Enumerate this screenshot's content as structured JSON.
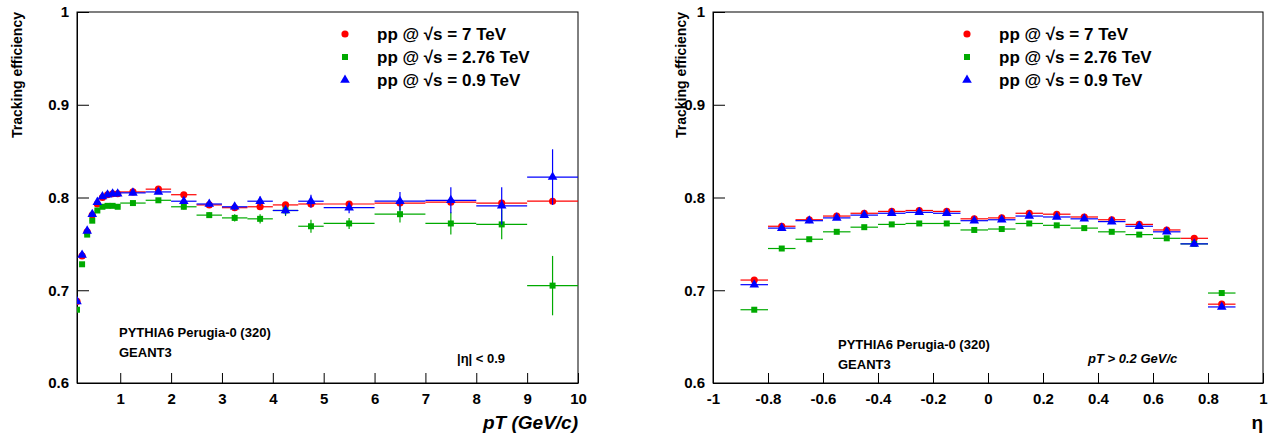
{
  "chart_data": [
    {
      "type": "scatter",
      "x_label": "pT (GeV/c)",
      "y_label": "Tracking efficiency",
      "xlim": [
        0.15,
        10
      ],
      "ylim": [
        0.6,
        1
      ],
      "xticks": [
        1,
        2,
        3,
        4,
        5,
        6,
        7,
        8,
        9,
        10
      ],
      "yticks": [
        0.6,
        0.7,
        0.8,
        0.9,
        1
      ],
      "legend": "upper right",
      "annotations": [
        "PYTHIA6 Perugia-0 (320)",
        "GEANT3",
        "|η| < 0.9"
      ],
      "series": [
        {
          "name": "pp @ √s = 7 TeV",
          "color": "#ff0000",
          "marker": "circle",
          "x": [
            0.15,
            0.25,
            0.35,
            0.45,
            0.55,
            0.65,
            0.75,
            0.85,
            0.95,
            1.25,
            1.75,
            2.25,
            2.75,
            3.25,
            3.75,
            4.25,
            4.75,
            5.5,
            6.5,
            7.5,
            8.5,
            9.5
          ],
          "values": [
            0.688,
            0.737,
            0.763,
            0.781,
            0.793,
            0.8,
            0.803,
            0.804,
            0.804,
            0.806,
            0.809,
            0.803,
            0.792,
            0.789,
            0.79,
            0.792,
            0.793,
            0.793,
            0.794,
            0.795,
            0.794,
            0.796
          ],
          "xerr": [
            0.05,
            0.05,
            0.05,
            0.05,
            0.05,
            0.05,
            0.05,
            0.05,
            0.05,
            0.25,
            0.25,
            0.25,
            0.25,
            0.25,
            0.25,
            0.25,
            0.25,
            0.5,
            0.5,
            0.5,
            0.5,
            0.5
          ],
          "yerr": [
            0.001,
            0.001,
            0.001,
            0.001,
            0.001,
            0.001,
            0.001,
            0.001,
            0.001,
            0.001,
            0.002,
            0.002,
            0.002,
            0.002,
            0.002,
            0.002,
            0.002,
            0.002,
            0.003,
            0.003,
            0.003,
            0.003
          ]
        },
        {
          "name": "pp @ √s = 2.76 TeV",
          "color": "#00aa00",
          "marker": "square",
          "x": [
            0.15,
            0.25,
            0.35,
            0.45,
            0.55,
            0.65,
            0.75,
            0.85,
            0.95,
            1.25,
            1.75,
            2.25,
            2.75,
            3.25,
            3.75,
            4.25,
            4.75,
            5.5,
            6.5,
            7.5,
            8.5,
            9.5
          ],
          "values": [
            0.679,
            0.728,
            0.76,
            0.775,
            0.786,
            0.79,
            0.791,
            0.791,
            0.79,
            0.794,
            0.797,
            0.79,
            0.781,
            0.778,
            0.777,
            0.786,
            0.769,
            0.772,
            0.782,
            0.772,
            0.771,
            0.705
          ],
          "xerr": [
            0.05,
            0.05,
            0.05,
            0.05,
            0.05,
            0.05,
            0.05,
            0.05,
            0.05,
            0.25,
            0.25,
            0.25,
            0.25,
            0.25,
            0.25,
            0.25,
            0.25,
            0.5,
            0.5,
            0.5,
            0.5,
            0.5
          ],
          "yerr": [
            0.001,
            0.001,
            0.001,
            0.001,
            0.001,
            0.001,
            0.001,
            0.001,
            0.001,
            0.002,
            0.002,
            0.003,
            0.003,
            0.004,
            0.005,
            0.006,
            0.007,
            0.006,
            0.009,
            0.012,
            0.016,
            0.032
          ]
        },
        {
          "name": "pp @ √s = 0.9 TeV",
          "color": "#0000ff",
          "marker": "triangle",
          "x": [
            0.15,
            0.25,
            0.35,
            0.45,
            0.55,
            0.65,
            0.75,
            0.85,
            0.95,
            1.25,
            1.75,
            2.25,
            2.75,
            3.25,
            3.75,
            4.25,
            4.75,
            5.5,
            6.5,
            7.5,
            8.5,
            9.5
          ],
          "values": [
            0.688,
            0.738,
            0.764,
            0.782,
            0.795,
            0.801,
            0.803,
            0.804,
            0.804,
            0.805,
            0.806,
            0.796,
            0.793,
            0.79,
            0.796,
            0.786,
            0.796,
            0.789,
            0.796,
            0.797,
            0.791,
            0.822
          ],
          "xerr": [
            0.05,
            0.05,
            0.05,
            0.05,
            0.05,
            0.05,
            0.05,
            0.05,
            0.05,
            0.25,
            0.25,
            0.25,
            0.25,
            0.25,
            0.25,
            0.25,
            0.25,
            0.5,
            0.5,
            0.5,
            0.5,
            0.5
          ],
          "yerr": [
            0.001,
            0.001,
            0.001,
            0.001,
            0.001,
            0.001,
            0.001,
            0.001,
            0.001,
            0.002,
            0.002,
            0.002,
            0.003,
            0.004,
            0.005,
            0.005,
            0.007,
            0.006,
            0.01,
            0.014,
            0.02,
            0.03
          ]
        }
      ]
    },
    {
      "type": "scatter",
      "x_label": "η",
      "y_label": "Tracking efficiency",
      "xlim": [
        -1,
        1
      ],
      "ylim": [
        0.6,
        1
      ],
      "xticks": [
        -1,
        -0.8,
        -0.6,
        -0.4,
        -0.2,
        0,
        0.2,
        0.4,
        0.6,
        0.8,
        1
      ],
      "yticks": [
        0.6,
        0.7,
        0.8,
        0.9,
        1
      ],
      "legend": "upper right",
      "annotations": [
        "PYTHIA6 Perugia-0 (320)",
        "GEANT3",
        "pT > 0.2 GeV/c"
      ],
      "series": [
        {
          "name": "pp @ √s = 7 TeV",
          "color": "#ff0000",
          "marker": "circle",
          "x": [
            -0.85,
            -0.75,
            -0.65,
            -0.55,
            -0.45,
            -0.35,
            -0.25,
            -0.15,
            -0.05,
            0.05,
            0.15,
            0.25,
            0.35,
            0.45,
            0.55,
            0.65,
            0.75,
            0.85
          ],
          "values": [
            0.711,
            0.769,
            0.776,
            0.78,
            0.783,
            0.785,
            0.786,
            0.785,
            0.777,
            0.778,
            0.783,
            0.782,
            0.779,
            0.776,
            0.771,
            0.765,
            0.756,
            0.685
          ],
          "xerr": [
            0.05,
            0.05,
            0.05,
            0.05,
            0.05,
            0.05,
            0.05,
            0.05,
            0.05,
            0.05,
            0.05,
            0.05,
            0.05,
            0.05,
            0.05,
            0.05,
            0.05,
            0.05
          ]
        },
        {
          "name": "pp @ √s = 2.76 TeV",
          "color": "#00aa00",
          "marker": "square",
          "x": [
            -0.85,
            -0.75,
            -0.65,
            -0.55,
            -0.45,
            -0.35,
            -0.25,
            -0.15,
            -0.05,
            0.05,
            0.15,
            0.25,
            0.35,
            0.45,
            0.55,
            0.65,
            0.75,
            0.85
          ],
          "values": [
            0.679,
            0.745,
            0.755,
            0.763,
            0.768,
            0.771,
            0.772,
            0.772,
            0.765,
            0.766,
            0.772,
            0.77,
            0.767,
            0.763,
            0.76,
            0.756,
            0.75,
            0.697
          ],
          "xerr": [
            0.05,
            0.05,
            0.05,
            0.05,
            0.05,
            0.05,
            0.05,
            0.05,
            0.05,
            0.05,
            0.05,
            0.05,
            0.05,
            0.05,
            0.05,
            0.05,
            0.05,
            0.05
          ]
        },
        {
          "name": "pp @ √s = 0.9 TeV",
          "color": "#0000ff",
          "marker": "triangle",
          "x": [
            -0.85,
            -0.75,
            -0.65,
            -0.55,
            -0.45,
            -0.35,
            -0.25,
            -0.15,
            -0.05,
            0.05,
            0.15,
            0.25,
            0.35,
            0.45,
            0.55,
            0.65,
            0.75,
            0.85
          ],
          "values": [
            0.706,
            0.767,
            0.775,
            0.778,
            0.781,
            0.783,
            0.784,
            0.783,
            0.775,
            0.776,
            0.78,
            0.779,
            0.777,
            0.774,
            0.769,
            0.763,
            0.75,
            0.682
          ],
          "xerr": [
            0.05,
            0.05,
            0.05,
            0.05,
            0.05,
            0.05,
            0.05,
            0.05,
            0.05,
            0.05,
            0.05,
            0.05,
            0.05,
            0.05,
            0.05,
            0.05,
            0.05,
            0.05
          ]
        }
      ]
    }
  ]
}
